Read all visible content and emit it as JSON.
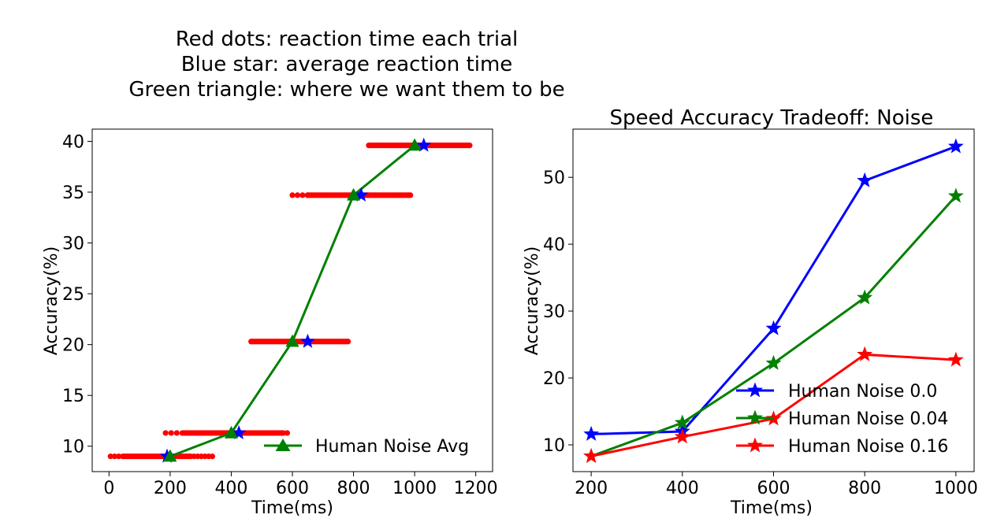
{
  "suptitle": {
    "line1": "Red dots: reaction time each trial",
    "line2": "Blue star: average reaction time",
    "line3": "Green triangle: where we want them to be"
  },
  "colors": {
    "red": "#ff0000",
    "blue": "#0000ff",
    "green": "#008000"
  },
  "chart_data": [
    {
      "type": "scatter",
      "title": "",
      "xlabel": "Time(ms)",
      "ylabel": "Accuracy(%)",
      "xlim": [
        -55,
        1255
      ],
      "ylim": [
        7.5,
        41.2
      ],
      "xticks": [
        0,
        200,
        400,
        600,
        800,
        1000,
        1200
      ],
      "yticks": [
        10,
        15,
        20,
        25,
        30,
        35,
        40
      ],
      "legend": {
        "position": "bottom-right",
        "entries": [
          "Human Noise Avg"
        ]
      },
      "target_line": {
        "name": "Human Noise Avg",
        "color": "green",
        "marker": "triangle",
        "x": [
          200,
          400,
          600,
          800,
          1000
        ],
        "y": [
          9.0,
          11.3,
          20.3,
          34.7,
          39.6
        ]
      },
      "average_points": {
        "color": "blue",
        "marker": "star",
        "x": [
          190,
          425,
          650,
          825,
          1030
        ],
        "y": [
          9.0,
          11.3,
          20.3,
          34.7,
          39.6
        ]
      },
      "trial_ranges": [
        {
          "y": 9.0,
          "x_min": 5,
          "x_max": 340,
          "dense_from": 45,
          "dense_to": 270
        },
        {
          "y": 11.3,
          "x_min": 185,
          "x_max": 590,
          "dense_from": 240,
          "dense_to": 575
        },
        {
          "y": 20.3,
          "x_min": 465,
          "x_max": 790,
          "dense_from": 470,
          "dense_to": 785
        },
        {
          "y": 34.7,
          "x_min": 600,
          "x_max": 990,
          "dense_from": 650,
          "dense_to": 990
        },
        {
          "y": 39.6,
          "x_min": 850,
          "x_max": 1185,
          "dense_from": 850,
          "dense_to": 1185
        }
      ]
    },
    {
      "type": "line",
      "title": "Speed Accuracy Tradeoff: Noise",
      "xlabel": "Time(ms)",
      "ylabel": "Accuracy(%)",
      "x": [
        200,
        400,
        600,
        800,
        1000
      ],
      "xlim": [
        160,
        1040
      ],
      "ylim": [
        6.0,
        57.2
      ],
      "xticks": [
        200,
        400,
        600,
        800,
        1000
      ],
      "yticks": [
        10,
        20,
        30,
        40,
        50
      ],
      "legend": {
        "position": "bottom-right"
      },
      "series": [
        {
          "name": "Human Noise 0.0",
          "color": "blue",
          "marker": "star",
          "values": [
            11.6,
            12.0,
            27.4,
            49.5,
            54.6
          ]
        },
        {
          "name": "Human Noise 0.04",
          "color": "green",
          "marker": "star",
          "values": [
            8.3,
            13.3,
            22.2,
            32.0,
            47.2
          ]
        },
        {
          "name": "Human Noise 0.16",
          "color": "red",
          "marker": "star",
          "values": [
            8.3,
            11.2,
            13.9,
            23.5,
            22.7
          ]
        }
      ]
    }
  ]
}
